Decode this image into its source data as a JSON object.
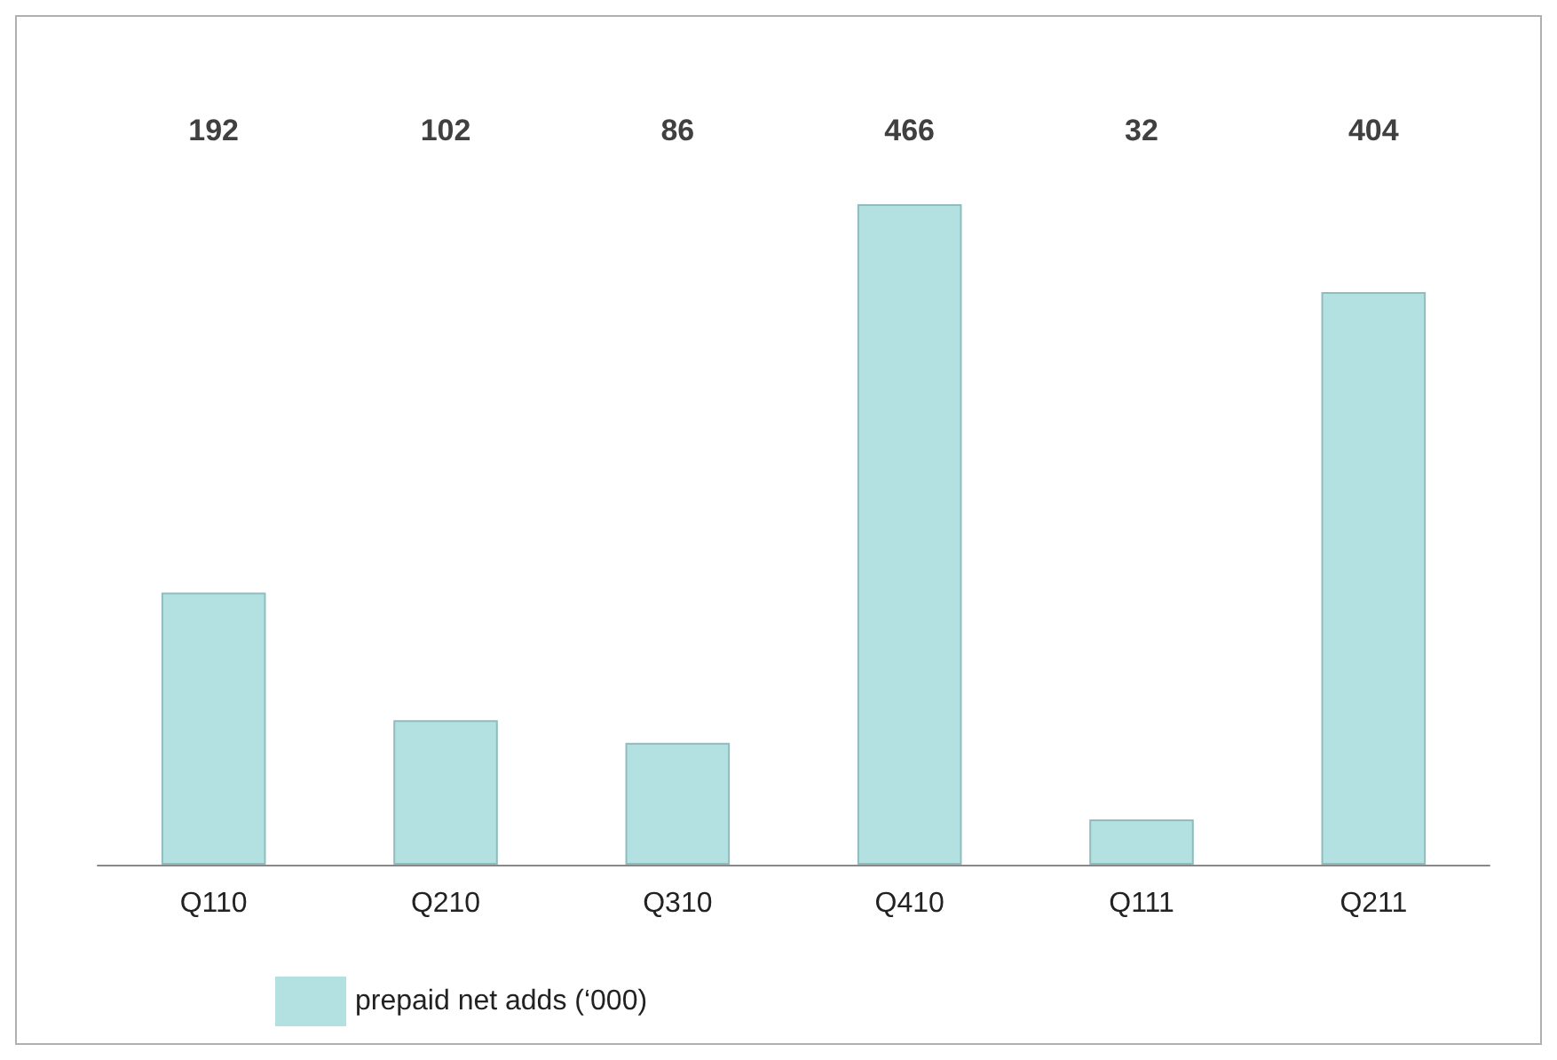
{
  "chart_data": {
    "type": "bar",
    "categories": [
      "Q110",
      "Q210",
      "Q310",
      "Q410",
      "Q111",
      "Q211"
    ],
    "series": [
      {
        "name": "prepaid net adds (‘000)",
        "color": "#b3e0e0",
        "values": [
          192,
          102,
          86,
          466,
          32,
          404
        ]
      }
    ],
    "data_labels": true,
    "legend": "bottom left",
    "grid": false
  }
}
